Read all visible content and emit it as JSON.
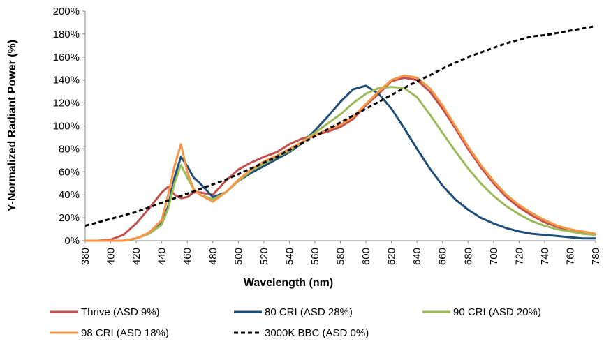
{
  "chart_data": {
    "type": "line",
    "x_label": "Wavelength (nm)",
    "y_label": "Y-Normalized Radiant Power (%)",
    "x": [
      380,
      390,
      400,
      410,
      420,
      430,
      440,
      445,
      450,
      455,
      460,
      465,
      470,
      480,
      490,
      500,
      510,
      520,
      530,
      540,
      550,
      560,
      570,
      580,
      590,
      600,
      610,
      620,
      630,
      640,
      650,
      660,
      670,
      680,
      690,
      700,
      710,
      720,
      730,
      740,
      750,
      760,
      770,
      780
    ],
    "xlim": [
      380,
      780
    ],
    "xticks": [
      380,
      400,
      420,
      440,
      460,
      480,
      500,
      520,
      540,
      560,
      580,
      600,
      620,
      640,
      660,
      680,
      700,
      720,
      740,
      760,
      780
    ],
    "ylim": [
      0,
      200
    ],
    "yticks": [
      {
        "value": 0,
        "label": "0%"
      },
      {
        "value": 20,
        "label": "20%"
      },
      {
        "value": 40,
        "label": "40%"
      },
      {
        "value": 60,
        "label": "60%"
      },
      {
        "value": 80,
        "label": "80%"
      },
      {
        "value": 100,
        "label": "100%"
      },
      {
        "value": 120,
        "label": "120%"
      },
      {
        "value": 140,
        "label": "140%"
      },
      {
        "value": 160,
        "label": "160%"
      },
      {
        "value": 180,
        "label": "180%"
      },
      {
        "value": 200,
        "label": "200%"
      }
    ],
    "grid": false,
    "legend": "bottom",
    "series": [
      {
        "name": "Thrive (ASD 9%)",
        "color": "#c0504d",
        "linestyle": "solid",
        "values": [
          0,
          0,
          1,
          5,
          15,
          28,
          42,
          47,
          40,
          37,
          38,
          42,
          42,
          40,
          52,
          62,
          68,
          73,
          77,
          84,
          89,
          92,
          95,
          99,
          106,
          118,
          128,
          139,
          142,
          140,
          130,
          115,
          98,
          80,
          64,
          50,
          38,
          29,
          22,
          16,
          12,
          9,
          7,
          5
        ]
      },
      {
        "name": "80 CRI  (ASD 28%)",
        "color": "#1f4e79",
        "linestyle": "solid",
        "values": [
          0,
          0,
          0,
          0,
          2,
          6,
          15,
          30,
          55,
          73,
          65,
          55,
          50,
          38,
          42,
          52,
          59,
          65,
          71,
          77,
          85,
          96,
          108,
          121,
          132,
          135,
          128,
          115,
          98,
          80,
          63,
          48,
          36,
          27,
          20,
          15,
          11,
          8,
          6,
          5,
          4,
          3,
          2,
          2
        ]
      },
      {
        "name": "90 CRI (ASD 20%)",
        "color": "#9bbb59",
        "linestyle": "solid",
        "values": [
          0,
          0,
          0,
          0,
          2,
          6,
          14,
          28,
          50,
          66,
          55,
          45,
          40,
          36,
          42,
          52,
          61,
          67,
          73,
          78,
          86,
          94,
          102,
          110,
          120,
          128,
          133,
          134,
          133,
          125,
          110,
          94,
          78,
          63,
          50,
          39,
          30,
          23,
          17,
          13,
          10,
          8,
          6,
          5
        ]
      },
      {
        "name": "98 CRI (ASD 18%)",
        "color": "#f79646",
        "linestyle": "solid",
        "values": [
          0,
          0,
          0,
          0,
          2,
          7,
          18,
          40,
          65,
          84,
          60,
          45,
          40,
          34,
          42,
          53,
          62,
          69,
          74,
          80,
          86,
          92,
          97,
          101,
          108,
          119,
          130,
          140,
          144,
          142,
          133,
          118,
          100,
          82,
          66,
          52,
          40,
          31,
          24,
          18,
          13,
          10,
          8,
          6
        ]
      },
      {
        "name": "3000K BBC (ASD 0%)",
        "color": "#000000",
        "linestyle": "dashed",
        "values": [
          13,
          16,
          19,
          22,
          25,
          29,
          33,
          35,
          37,
          39,
          41,
          43,
          45,
          49,
          53,
          58,
          63,
          68,
          73,
          79,
          85,
          91,
          97,
          103,
          109,
          115,
          121,
          127,
          133,
          139,
          144,
          150,
          155,
          160,
          164,
          168,
          172,
          175,
          178,
          179,
          181,
          183,
          185,
          187
        ]
      }
    ]
  }
}
